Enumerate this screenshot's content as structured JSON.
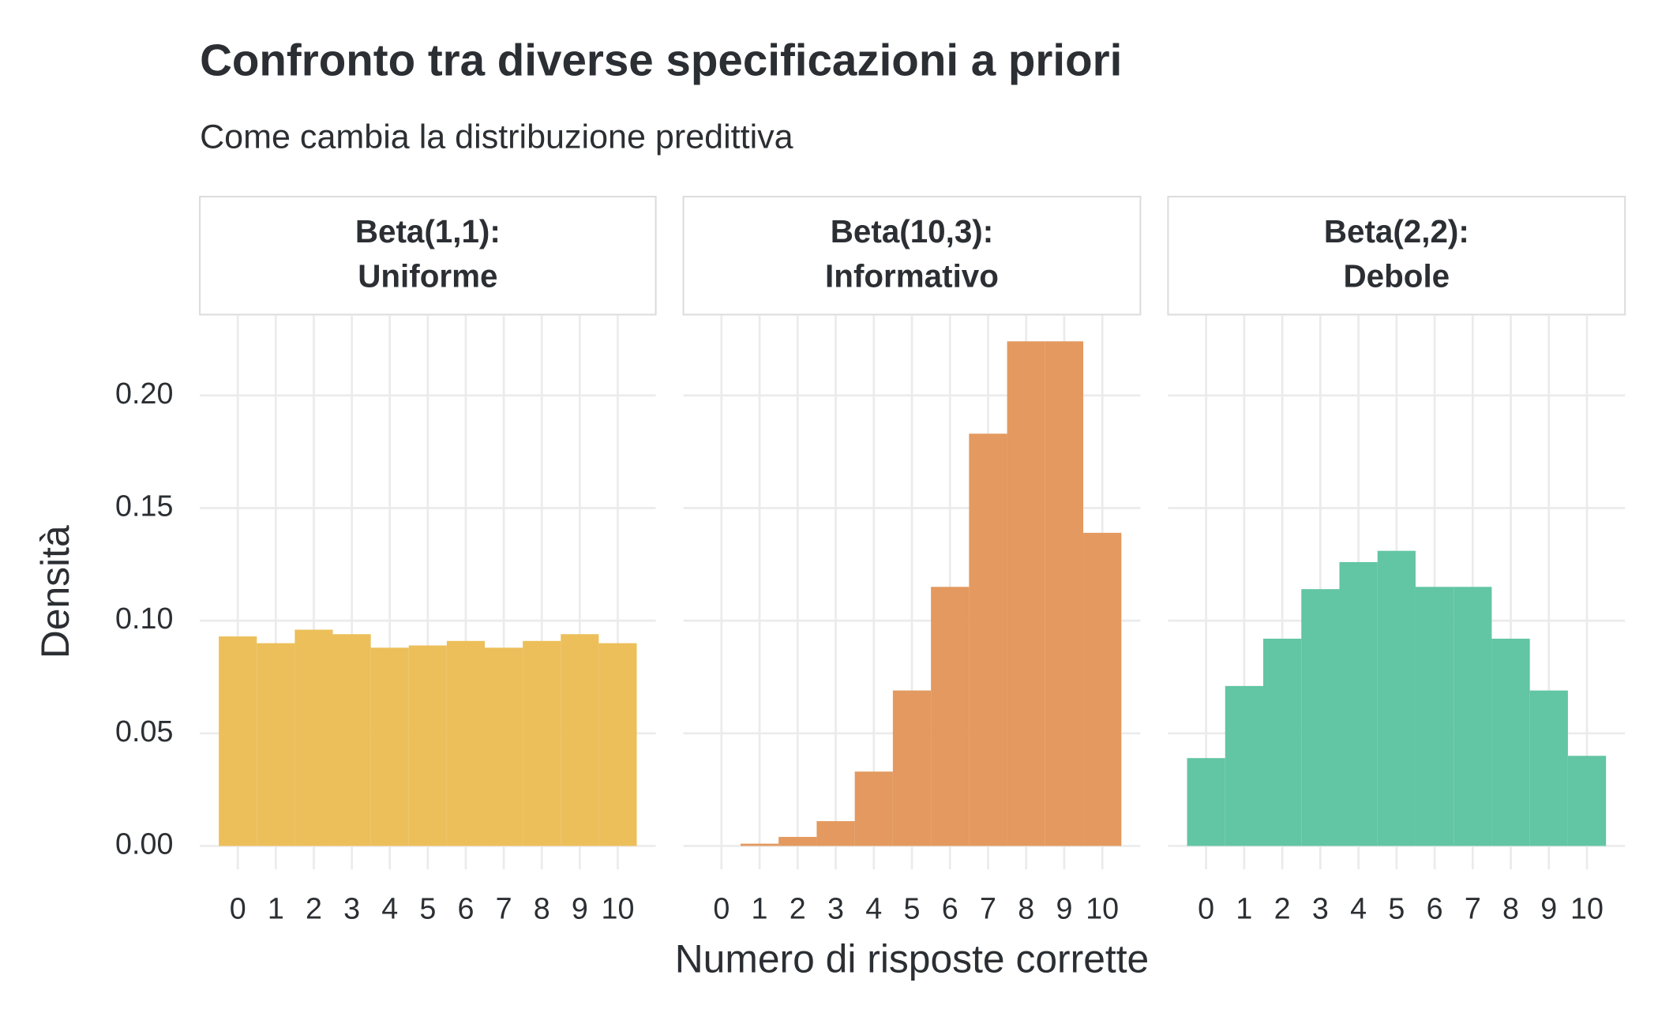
{
  "chart_data": {
    "type": "histogram",
    "title": "Confronto tra diverse specificazioni a priori",
    "subtitle": "Come cambia la distribuzione predittiva",
    "x_label": "Numero di risposte corrette",
    "y_label": "Densità",
    "xlim": [
      -1,
      11
    ],
    "xticks": [
      0,
      1,
      2,
      3,
      4,
      5,
      6,
      7,
      8,
      9,
      10
    ],
    "ylim": [
      -0.0104,
      0.2354
    ],
    "yticks": [
      {
        "value": 0,
        "label": "0.00"
      },
      {
        "value": 0.05,
        "label": "0.05"
      },
      {
        "value": 0.1,
        "label": "0.10"
      },
      {
        "value": 0.15,
        "label": "0.15"
      },
      {
        "value": 0.2,
        "label": "0.20"
      }
    ],
    "grid": true,
    "bins": [
      -0.5,
      0.5,
      1.5,
      2.5,
      3.5,
      4.5,
      5.5,
      6.5,
      7.5,
      8.5,
      9.5,
      10.5
    ],
    "facets": [
      {
        "title": "Beta(1,1):\nUniforme",
        "color": "#ecbf5a",
        "values": [
          0.093,
          0.09,
          0.096,
          0.094,
          0.088,
          0.089,
          0.091,
          0.088,
          0.091,
          0.094,
          0.09
        ]
      },
      {
        "title": "Beta(10,3):\nInformativo",
        "color": "#e3995f",
        "values": [
          0,
          0.001,
          0.004,
          0.011,
          0.033,
          0.069,
          0.115,
          0.183,
          0.224,
          0.224,
          0.139
        ]
      },
      {
        "title": "Beta(2,2):\nDebole",
        "color": "#62c5a4",
        "values": [
          0.039,
          0.071,
          0.092,
          0.114,
          0.126,
          0.131,
          0.115,
          0.115,
          0.092,
          0.069,
          0.04
        ]
      }
    ]
  }
}
